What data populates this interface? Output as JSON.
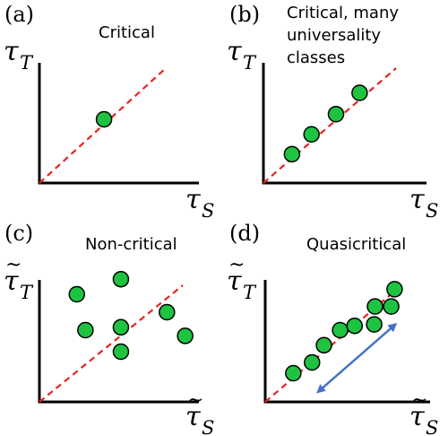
{
  "colors": {
    "point_fill": "#1ec441",
    "point_stroke": "#000000",
    "diagonal": "#e8231e",
    "arrow": "#4472c4",
    "axis": "#000000"
  },
  "panels": [
    {
      "letter": "(a)",
      "title_lines": [
        "Critical"
      ],
      "y_symbol": "τ",
      "y_sub": "T",
      "x_symbol": "τ",
      "x_sub": "S",
      "tilde": false,
      "points": [
        [
          0.405,
          0.53
        ]
      ],
      "arrow": null
    },
    {
      "letter": "(b)",
      "title_lines": [
        "Critical, many",
        "universality",
        "classes"
      ],
      "y_symbol": "τ",
      "y_sub": "T",
      "x_symbol": "τ",
      "x_sub": "S",
      "tilde": false,
      "points": [
        [
          0.175,
          0.24
        ],
        [
          0.295,
          0.405
        ],
        [
          0.445,
          0.573
        ],
        [
          0.59,
          0.75
        ]
      ],
      "arrow": null
    },
    {
      "letter": "(c)",
      "title_lines": [
        "Non-critical"
      ],
      "y_symbol": "τ",
      "y_sub": "T",
      "x_symbol": "τ̃",
      "x_sub": "S",
      "tilde": true,
      "points": [
        [
          0.195,
          0.75
        ],
        [
          0.24,
          0.5
        ],
        [
          0.425,
          0.855
        ],
        [
          0.425,
          0.52
        ],
        [
          0.425,
          0.35
        ],
        [
          0.665,
          0.625
        ],
        [
          0.76,
          0.46
        ]
      ],
      "arrow": null
    },
    {
      "letter": "(d)",
      "title_lines": [
        "Quasicritical"
      ],
      "y_symbol": "τ",
      "y_sub": "T",
      "x_symbol": "τ̃",
      "x_sub": "S",
      "tilde": true,
      "points": [
        [
          0.165,
          0.2
        ],
        [
          0.275,
          0.275
        ],
        [
          0.345,
          0.395
        ],
        [
          0.44,
          0.5
        ],
        [
          0.525,
          0.53
        ],
        [
          0.64,
          0.54
        ],
        [
          0.645,
          0.665
        ],
        [
          0.74,
          0.665
        ],
        [
          0.76,
          0.785
        ]
      ],
      "arrow": [
        [
          0.32,
          0.08
        ],
        [
          0.755,
          0.53
        ]
      ]
    }
  ]
}
